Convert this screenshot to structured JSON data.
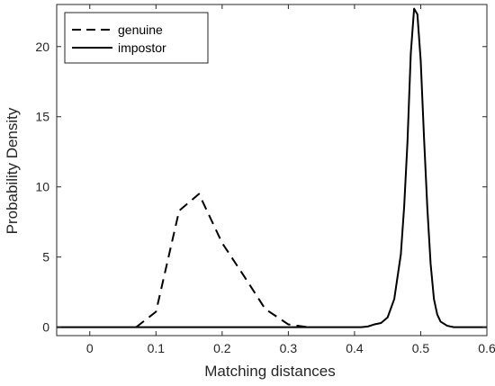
{
  "chart_data": {
    "type": "line",
    "title": "",
    "xlabel": "Matching distances",
    "ylabel": "Probability Density",
    "xlim": [
      -0.05,
      0.6
    ],
    "ylim": [
      -0.6,
      23
    ],
    "xticks": [
      0,
      0.1,
      0.2,
      0.3,
      0.4,
      0.5,
      0.6
    ],
    "xtick_labels": [
      "0",
      "0.1",
      "0.2",
      "0.3",
      "0.4",
      "0.5",
      "0.6"
    ],
    "yticks": [
      0,
      5,
      10,
      15,
      20
    ],
    "ytick_labels": [
      "0",
      "5",
      "10",
      "15",
      "20"
    ],
    "grid": false,
    "legend_position": "top-left",
    "series": [
      {
        "name": "genuine",
        "style": "dashed",
        "color": "#000000",
        "x": [
          0.07,
          0.1,
          0.135,
          0.165,
          0.2,
          0.235,
          0.265,
          0.3,
          0.33
        ],
        "y": [
          0.0,
          1.1,
          8.3,
          9.5,
          6.0,
          3.5,
          1.3,
          0.2,
          0.0
        ]
      },
      {
        "name": "impostor",
        "style": "solid",
        "color": "#000000",
        "x": [
          -0.05,
          0.41,
          0.42,
          0.43,
          0.44,
          0.45,
          0.46,
          0.47,
          0.475,
          0.48,
          0.485,
          0.49,
          0.495,
          0.5,
          0.505,
          0.51,
          0.515,
          0.52,
          0.525,
          0.53,
          0.54,
          0.55,
          0.56,
          0.6
        ],
        "y": [
          0.0,
          0.0,
          0.05,
          0.2,
          0.3,
          0.7,
          2.0,
          5.2,
          8.6,
          13.2,
          19.5,
          22.7,
          22.3,
          19.0,
          13.5,
          8.5,
          4.5,
          2.0,
          0.9,
          0.4,
          0.1,
          0.0,
          0.0,
          0.0
        ]
      }
    ]
  }
}
